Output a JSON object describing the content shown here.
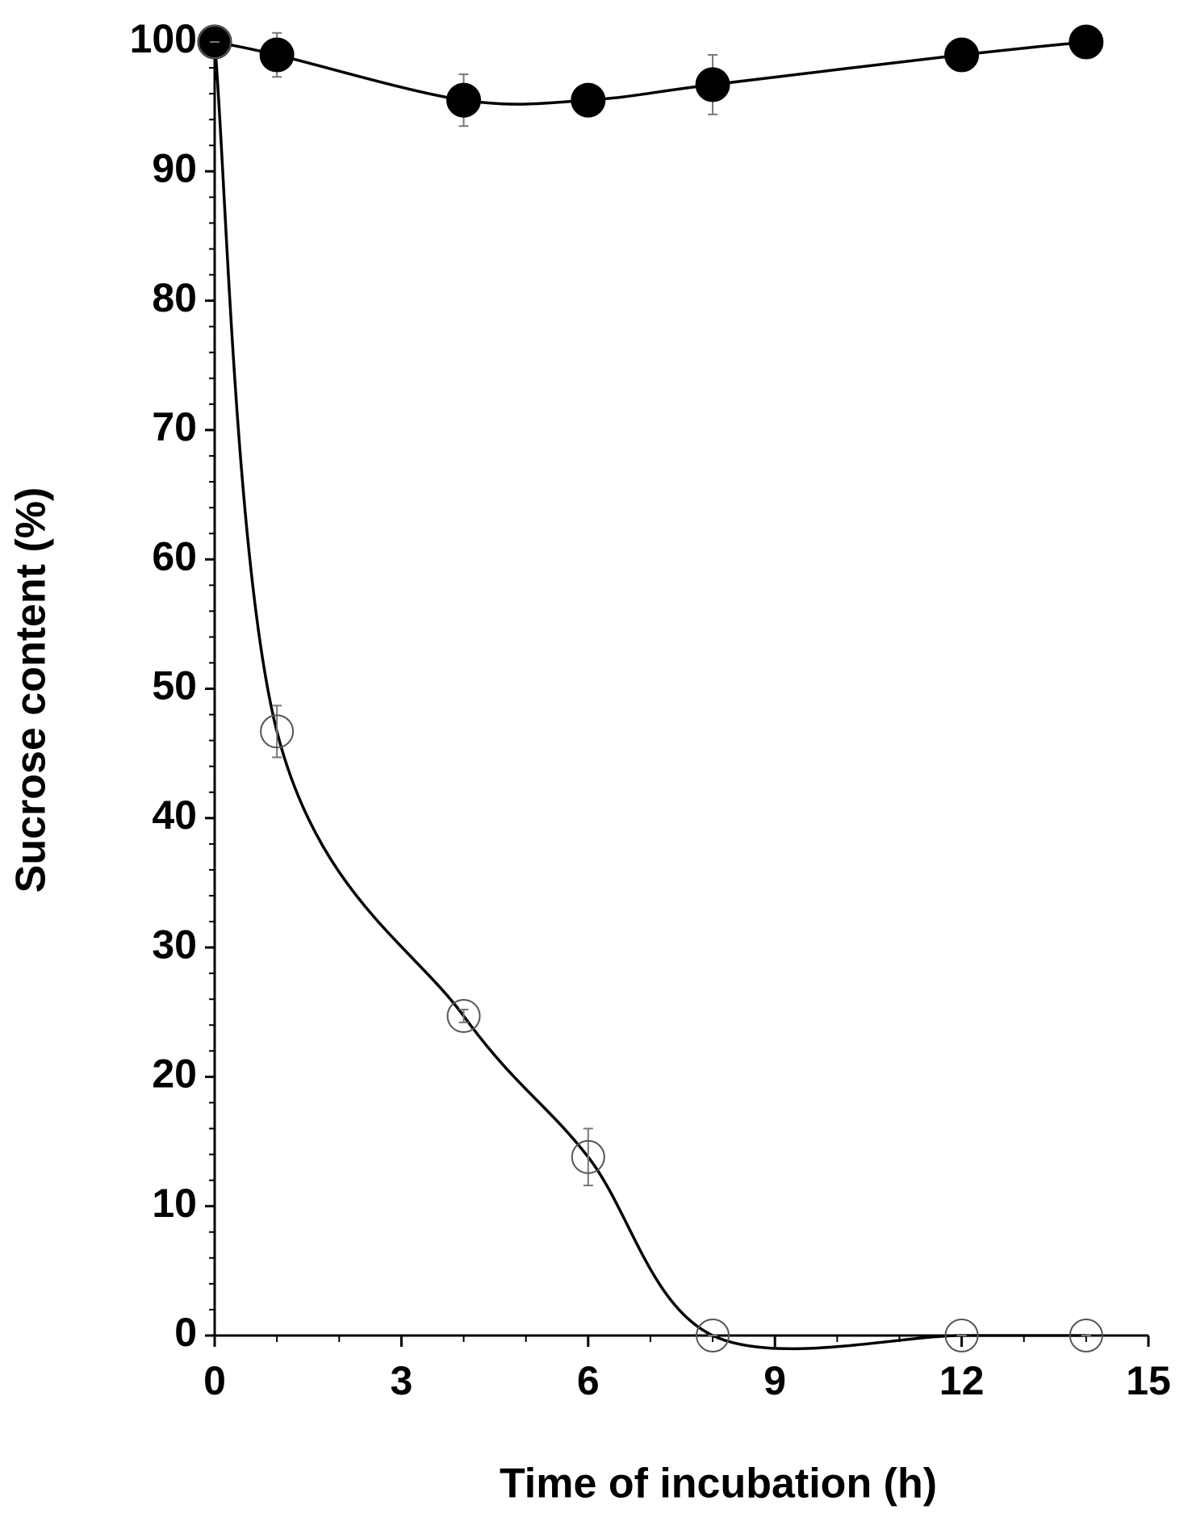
{
  "chart_data": {
    "type": "line",
    "x_label": "Time of incubation (h)",
    "y_label": "Sucrose content (%)",
    "series": [
      {
        "marker": "filled",
        "color": "#000000",
        "x": [
          0,
          1,
          4,
          6,
          8,
          12,
          14
        ],
        "values": [
          100,
          99,
          95.5,
          95.5,
          96.7,
          99,
          100
        ],
        "errors": [
          0,
          1.7,
          2,
          0,
          2.3,
          0,
          0
        ]
      },
      {
        "marker": "open",
        "color": "#000000",
        "x": [
          0,
          1,
          4,
          6,
          8,
          12,
          14
        ],
        "values": [
          100,
          46.7,
          24.7,
          13.8,
          0,
          0,
          0
        ],
        "errors": [
          0,
          2,
          0.5,
          2.2,
          0,
          0,
          0
        ]
      }
    ],
    "xlim": [
      0,
      15
    ],
    "xticks": [
      0,
      3,
      6,
      9,
      12,
      15
    ],
    "xminorticks": [
      1,
      2,
      4,
      5,
      7,
      8,
      10,
      11,
      13,
      14
    ],
    "ylim": [
      0,
      100
    ],
    "yticks": [
      0,
      10,
      20,
      30,
      40,
      50,
      60,
      70,
      80,
      90,
      100
    ],
    "yminorticks": [
      2,
      4,
      6,
      8,
      12,
      14,
      16,
      18,
      22,
      24,
      26,
      28,
      32,
      34,
      36,
      38,
      42,
      44,
      46,
      48,
      52,
      54,
      56,
      58,
      62,
      64,
      66,
      68,
      72,
      74,
      76,
      78,
      82,
      84,
      86,
      88,
      92,
      94,
      96,
      98
    ]
  }
}
